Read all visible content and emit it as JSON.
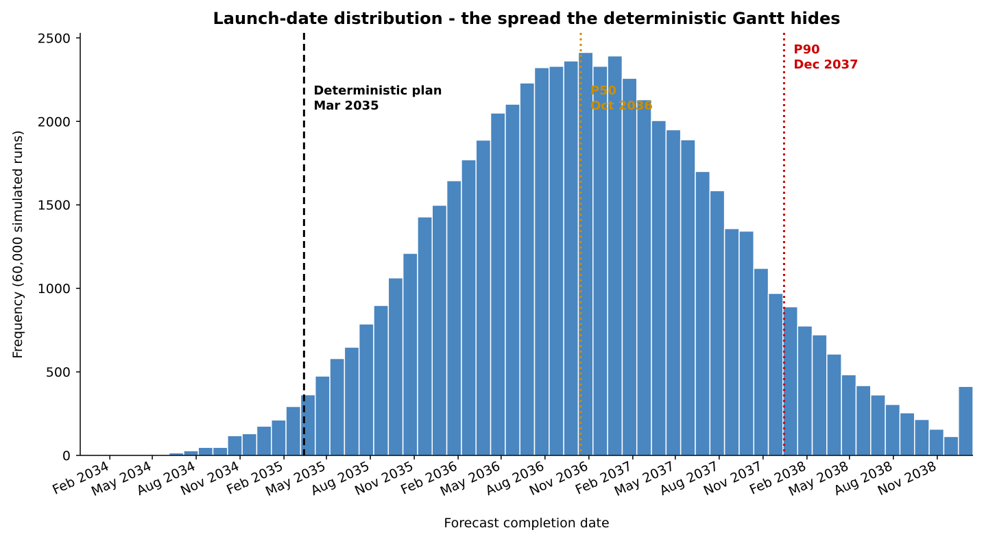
{
  "chart_data": {
    "type": "bar",
    "title": "Launch-date distribution - the spread the deterministic Gantt hides",
    "xlabel": "Forecast completion date",
    "ylabel": "Frequency  (60,000 simulated runs)",
    "ylim": [
      0,
      2530
    ],
    "yticks": [
      0,
      500,
      1000,
      1500,
      2000,
      2500
    ],
    "xlim": [
      "2033-12-01",
      "2039-01-15"
    ],
    "xticks": [
      {
        "date": "2034-02-01",
        "label": "Feb 2034"
      },
      {
        "date": "2034-05-01",
        "label": "May 2034"
      },
      {
        "date": "2034-08-01",
        "label": "Aug 2034"
      },
      {
        "date": "2034-11-01",
        "label": "Nov 2034"
      },
      {
        "date": "2035-02-01",
        "label": "Feb 2035"
      },
      {
        "date": "2035-05-01",
        "label": "May 2035"
      },
      {
        "date": "2035-08-01",
        "label": "Aug 2035"
      },
      {
        "date": "2035-11-01",
        "label": "Nov 2035"
      },
      {
        "date": "2036-02-01",
        "label": "Feb 2036"
      },
      {
        "date": "2036-05-01",
        "label": "May 2036"
      },
      {
        "date": "2036-08-01",
        "label": "Aug 2036"
      },
      {
        "date": "2036-11-01",
        "label": "Nov 2036"
      },
      {
        "date": "2037-02-01",
        "label": "Feb 2037"
      },
      {
        "date": "2037-05-01",
        "label": "May 2037"
      },
      {
        "date": "2037-08-01",
        "label": "Aug 2037"
      },
      {
        "date": "2037-11-01",
        "label": "Nov 2037"
      },
      {
        "date": "2038-02-01",
        "label": "Feb 2038"
      },
      {
        "date": "2038-05-01",
        "label": "May 2038"
      },
      {
        "date": "2038-08-01",
        "label": "Aug 2038"
      },
      {
        "date": "2038-11-01",
        "label": "Nov 2038"
      }
    ],
    "bin_edges": [
      "2034-01-03",
      "2039-01-15"
    ],
    "values": [
      0,
      0,
      3,
      5,
      4,
      15,
      28,
      48,
      48,
      118,
      130,
      175,
      212,
      293,
      363,
      475,
      580,
      648,
      787,
      898,
      1063,
      1210,
      1428,
      1498,
      1645,
      1770,
      1888,
      2050,
      2103,
      2230,
      2322,
      2330,
      2362,
      2413,
      2330,
      2392,
      2258,
      2130,
      2005,
      1950,
      1890,
      1700,
      1585,
      1358,
      1343,
      1120,
      970,
      890,
      775,
      722,
      607,
      483,
      418,
      362,
      305,
      255,
      215,
      157,
      113,
      413
    ],
    "bar_color": "#4a86c0",
    "grid": false,
    "markers": [
      {
        "date": "2035-03-15",
        "style": "dashed",
        "color": "#000000",
        "line1": "Deterministic plan",
        "line2": "Mar 2035"
      },
      {
        "date": "2036-10-15",
        "style": "dotted",
        "color": "#cc8e00",
        "line1": "P50",
        "line2": "Oct 2036"
      },
      {
        "date": "2037-12-15",
        "style": "dotted",
        "color": "#cc0000",
        "line1": "P90",
        "line2": "Dec 2037"
      }
    ]
  }
}
